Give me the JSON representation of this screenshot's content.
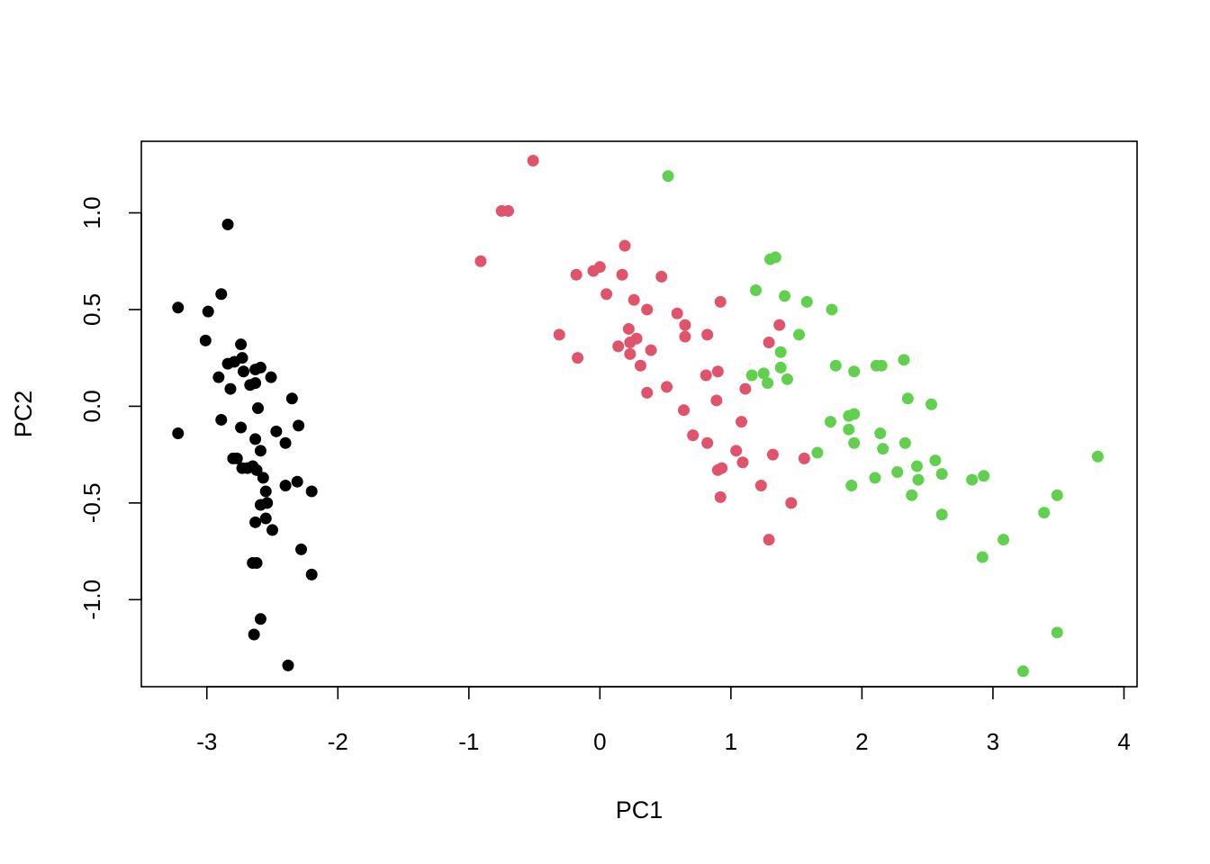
{
  "chart_data": {
    "type": "scatter",
    "xlabel": "PC1",
    "ylabel": "PC2",
    "xlim": [
      -3.5,
      4.1
    ],
    "ylim": [
      -1.45,
      1.37
    ],
    "x_ticks": [
      -3,
      -2,
      -1,
      0,
      1,
      2,
      3,
      4
    ],
    "y_ticks": [
      -1.0,
      -0.5,
      0.0,
      0.5,
      1.0
    ],
    "x_tick_labels": [
      "-3",
      "-2",
      "-1",
      "0",
      "1",
      "2",
      "3",
      "4"
    ],
    "y_tick_labels": [
      "-1.0",
      "-0.5",
      "0.0",
      "0.5",
      "1.0"
    ],
    "grid": false,
    "legend": "none",
    "series": [
      {
        "color": "#000000",
        "points": [
          [
            -2.84,
            0.94
          ],
          [
            -2.89,
            0.58
          ],
          [
            -3.22,
            0.51
          ],
          [
            -2.99,
            0.49
          ],
          [
            -3.01,
            0.34
          ],
          [
            -2.74,
            0.32
          ],
          [
            -2.73,
            0.25
          ],
          [
            -2.79,
            0.23
          ],
          [
            -2.84,
            0.22
          ],
          [
            -2.63,
            0.19
          ],
          [
            -2.59,
            0.2
          ],
          [
            -2.72,
            0.18
          ],
          [
            -2.51,
            0.15
          ],
          [
            -2.91,
            0.15
          ],
          [
            -2.63,
            0.12
          ],
          [
            -2.67,
            0.11
          ],
          [
            -2.82,
            0.09
          ],
          [
            -2.35,
            0.04
          ],
          [
            -2.61,
            -0.01
          ],
          [
            -2.89,
            -0.07
          ],
          [
            -2.3,
            -0.1
          ],
          [
            -3.22,
            -0.14
          ],
          [
            -2.74,
            -0.11
          ],
          [
            -2.47,
            -0.13
          ],
          [
            -2.63,
            -0.17
          ],
          [
            -2.4,
            -0.19
          ],
          [
            -2.59,
            -0.23
          ],
          [
            -2.8,
            -0.27
          ],
          [
            -2.77,
            -0.27
          ],
          [
            -2.65,
            -0.31
          ],
          [
            -2.69,
            -0.32
          ],
          [
            -2.73,
            -0.32
          ],
          [
            -2.62,
            -0.33
          ],
          [
            -2.57,
            -0.37
          ],
          [
            -2.31,
            -0.39
          ],
          [
            -2.4,
            -0.41
          ],
          [
            -2.2,
            -0.44
          ],
          [
            -2.55,
            -0.44
          ],
          [
            -2.54,
            -0.5
          ],
          [
            -2.59,
            -0.51
          ],
          [
            -2.55,
            -0.58
          ],
          [
            -2.63,
            -0.6
          ],
          [
            -2.5,
            -0.64
          ],
          [
            -2.28,
            -0.74
          ],
          [
            -2.65,
            -0.81
          ],
          [
            -2.62,
            -0.81
          ],
          [
            -2.2,
            -0.87
          ],
          [
            -2.59,
            -1.1
          ],
          [
            -2.64,
            -1.18
          ],
          [
            -2.38,
            -1.34
          ]
        ]
      },
      {
        "color": "#df536b",
        "points": [
          [
            -0.51,
            1.27
          ],
          [
            -0.75,
            1.01
          ],
          [
            -0.7,
            1.01
          ],
          [
            -0.91,
            0.75
          ],
          [
            0.19,
            0.83
          ],
          [
            -0.18,
            0.68
          ],
          [
            -0.05,
            0.7
          ],
          [
            0.0,
            0.72
          ],
          [
            0.17,
            0.68
          ],
          [
            0.47,
            0.67
          ],
          [
            0.05,
            0.58
          ],
          [
            0.26,
            0.55
          ],
          [
            0.92,
            0.54
          ],
          [
            0.36,
            0.5
          ],
          [
            0.59,
            0.48
          ],
          [
            0.65,
            0.42
          ],
          [
            1.37,
            0.42
          ],
          [
            0.22,
            0.4
          ],
          [
            -0.31,
            0.37
          ],
          [
            0.28,
            0.35
          ],
          [
            0.65,
            0.36
          ],
          [
            0.82,
            0.37
          ],
          [
            0.23,
            0.33
          ],
          [
            1.29,
            0.33
          ],
          [
            0.14,
            0.31
          ],
          [
            0.39,
            0.29
          ],
          [
            -0.17,
            0.25
          ],
          [
            0.23,
            0.27
          ],
          [
            0.31,
            0.21
          ],
          [
            0.9,
            0.18
          ],
          [
            0.81,
            0.16
          ],
          [
            1.11,
            0.09
          ],
          [
            0.51,
            0.1
          ],
          [
            0.36,
            0.07
          ],
          [
            0.89,
            0.03
          ],
          [
            0.64,
            -0.02
          ],
          [
            1.08,
            -0.08
          ],
          [
            0.71,
            -0.15
          ],
          [
            0.82,
            -0.19
          ],
          [
            1.04,
            -0.23
          ],
          [
            1.32,
            -0.25
          ],
          [
            1.56,
            -0.27
          ],
          [
            1.09,
            -0.29
          ],
          [
            0.93,
            -0.32
          ],
          [
            0.9,
            -0.33
          ],
          [
            1.23,
            -0.41
          ],
          [
            0.92,
            -0.47
          ],
          [
            1.46,
            -0.5
          ],
          [
            1.29,
            -0.69
          ]
        ]
      },
      {
        "color": "#61d04f",
        "points": [
          [
            0.52,
            1.19
          ],
          [
            1.3,
            0.76
          ],
          [
            1.34,
            0.77
          ],
          [
            1.19,
            0.6
          ],
          [
            1.41,
            0.57
          ],
          [
            1.58,
            0.54
          ],
          [
            1.77,
            0.5
          ],
          [
            1.52,
            0.37
          ],
          [
            1.38,
            0.28
          ],
          [
            1.8,
            0.21
          ],
          [
            2.11,
            0.21
          ],
          [
            2.15,
            0.21
          ],
          [
            2.32,
            0.24
          ],
          [
            1.38,
            0.2
          ],
          [
            1.94,
            0.18
          ],
          [
            1.16,
            0.16
          ],
          [
            1.25,
            0.17
          ],
          [
            1.43,
            0.14
          ],
          [
            1.28,
            0.12
          ],
          [
            2.35,
            0.04
          ],
          [
            2.53,
            0.01
          ],
          [
            1.9,
            -0.05
          ],
          [
            1.94,
            -0.04
          ],
          [
            1.76,
            -0.08
          ],
          [
            1.9,
            -0.12
          ],
          [
            2.14,
            -0.14
          ],
          [
            1.94,
            -0.19
          ],
          [
            2.16,
            -0.22
          ],
          [
            2.33,
            -0.19
          ],
          [
            1.66,
            -0.24
          ],
          [
            2.56,
            -0.28
          ],
          [
            2.42,
            -0.31
          ],
          [
            2.27,
            -0.34
          ],
          [
            2.61,
            -0.35
          ],
          [
            2.43,
            -0.38
          ],
          [
            2.1,
            -0.37
          ],
          [
            1.92,
            -0.41
          ],
          [
            2.84,
            -0.38
          ],
          [
            2.93,
            -0.36
          ],
          [
            3.8,
            -0.26
          ],
          [
            2.38,
            -0.46
          ],
          [
            3.49,
            -0.46
          ],
          [
            2.61,
            -0.56
          ],
          [
            3.39,
            -0.55
          ],
          [
            3.08,
            -0.69
          ],
          [
            2.92,
            -0.78
          ],
          [
            3.49,
            -1.17
          ],
          [
            3.23,
            -1.37
          ]
        ]
      }
    ]
  }
}
